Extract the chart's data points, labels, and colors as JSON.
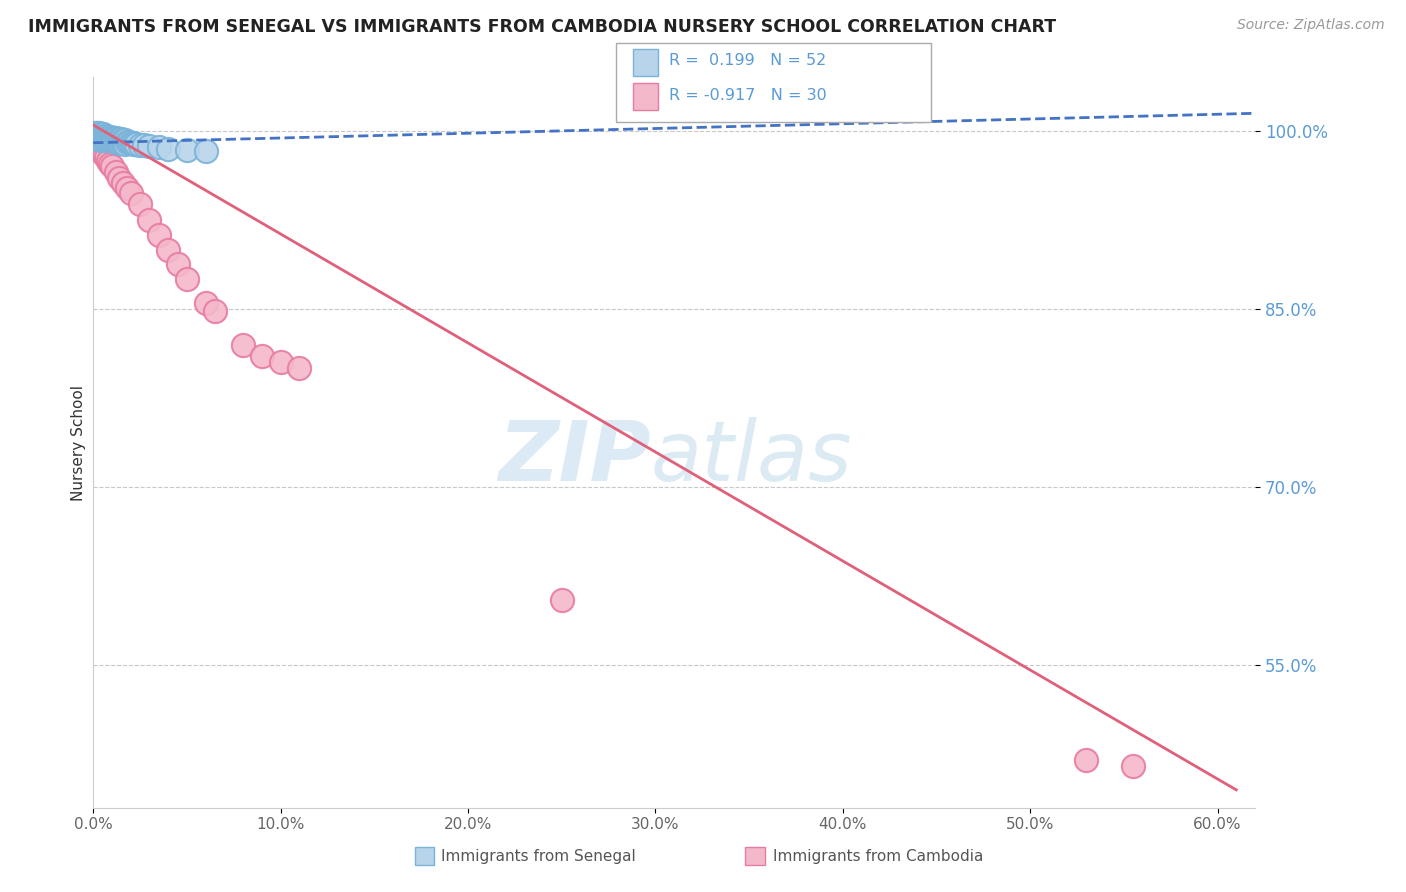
{
  "title": "IMMIGRANTS FROM SENEGAL VS IMMIGRANTS FROM CAMBODIA NURSERY SCHOOL CORRELATION CHART",
  "source": "Source: ZipAtlas.com",
  "ylabel": "Nursery School",
  "xlabel": "",
  "background_color": "#ffffff",
  "watermark_zip": "ZIP",
  "watermark_atlas": "atlas",
  "R_senegal": 0.199,
  "N_senegal": 52,
  "R_cambodia": -0.917,
  "N_cambodia": 30,
  "senegal_edge_color": "#7ab3d9",
  "senegal_fill_color": "#b8d4ea",
  "cambodia_edge_color": "#e87ca0",
  "cambodia_fill_color": "#f4b8cb",
  "trend_senegal_color": "#4472c4",
  "trend_cambodia_color": "#e0607a",
  "xlim": [
    0.0,
    0.62
  ],
  "ylim": [
    0.43,
    1.045
  ],
  "yticks": [
    0.55,
    0.7,
    0.85,
    1.0
  ],
  "ytick_labels": [
    "55.0%",
    "70.0%",
    "85.0%",
    "100.0%"
  ],
  "xticks": [
    0.0,
    0.1,
    0.2,
    0.3,
    0.4,
    0.5,
    0.6
  ],
  "xtick_labels": [
    "0.0%",
    "10.0%",
    "20.0%",
    "30.0%",
    "40.0%",
    "50.0%",
    "60.0%"
  ],
  "grid_color": "#c8c8c8",
  "senegal_x": [
    0.0,
    0.001,
    0.001,
    0.002,
    0.002,
    0.002,
    0.003,
    0.003,
    0.003,
    0.004,
    0.004,
    0.004,
    0.005,
    0.005,
    0.005,
    0.006,
    0.006,
    0.007,
    0.007,
    0.008,
    0.008,
    0.009,
    0.009,
    0.01,
    0.01,
    0.011,
    0.011,
    0.012,
    0.012,
    0.013,
    0.013,
    0.014,
    0.014,
    0.015,
    0.015,
    0.016,
    0.016,
    0.017,
    0.017,
    0.018,
    0.019,
    0.02,
    0.021,
    0.022,
    0.023,
    0.025,
    0.027,
    0.03,
    0.035,
    0.04,
    0.05,
    0.06
  ],
  "senegal_y": [
    0.995,
    0.998,
    0.995,
    0.998,
    0.996,
    0.993,
    0.998,
    0.996,
    0.993,
    0.997,
    0.995,
    0.992,
    0.997,
    0.995,
    0.992,
    0.996,
    0.993,
    0.996,
    0.993,
    0.995,
    0.993,
    0.995,
    0.992,
    0.994,
    0.992,
    0.994,
    0.992,
    0.994,
    0.991,
    0.993,
    0.991,
    0.993,
    0.99,
    0.993,
    0.99,
    0.992,
    0.99,
    0.992,
    0.989,
    0.991,
    0.991,
    0.99,
    0.99,
    0.989,
    0.989,
    0.988,
    0.988,
    0.987,
    0.986,
    0.985,
    0.984,
    0.983
  ],
  "cambodia_x": [
    0.001,
    0.002,
    0.003,
    0.004,
    0.005,
    0.006,
    0.007,
    0.008,
    0.009,
    0.01,
    0.012,
    0.014,
    0.016,
    0.018,
    0.02,
    0.025,
    0.03,
    0.035,
    0.04,
    0.045,
    0.05,
    0.06,
    0.065,
    0.08,
    0.09,
    0.1,
    0.11,
    0.25,
    0.53,
    0.555
  ],
  "cambodia_y": [
    0.99,
    0.988,
    0.986,
    0.985,
    0.983,
    0.98,
    0.978,
    0.975,
    0.972,
    0.97,
    0.965,
    0.96,
    0.956,
    0.952,
    0.948,
    0.938,
    0.925,
    0.912,
    0.9,
    0.888,
    0.875,
    0.855,
    0.848,
    0.82,
    0.81,
    0.805,
    0.8,
    0.605,
    0.47,
    0.465
  ],
  "cam_trend_x0": 0.0,
  "cam_trend_y0": 1.005,
  "cam_trend_x1": 0.61,
  "cam_trend_y1": 0.445
}
